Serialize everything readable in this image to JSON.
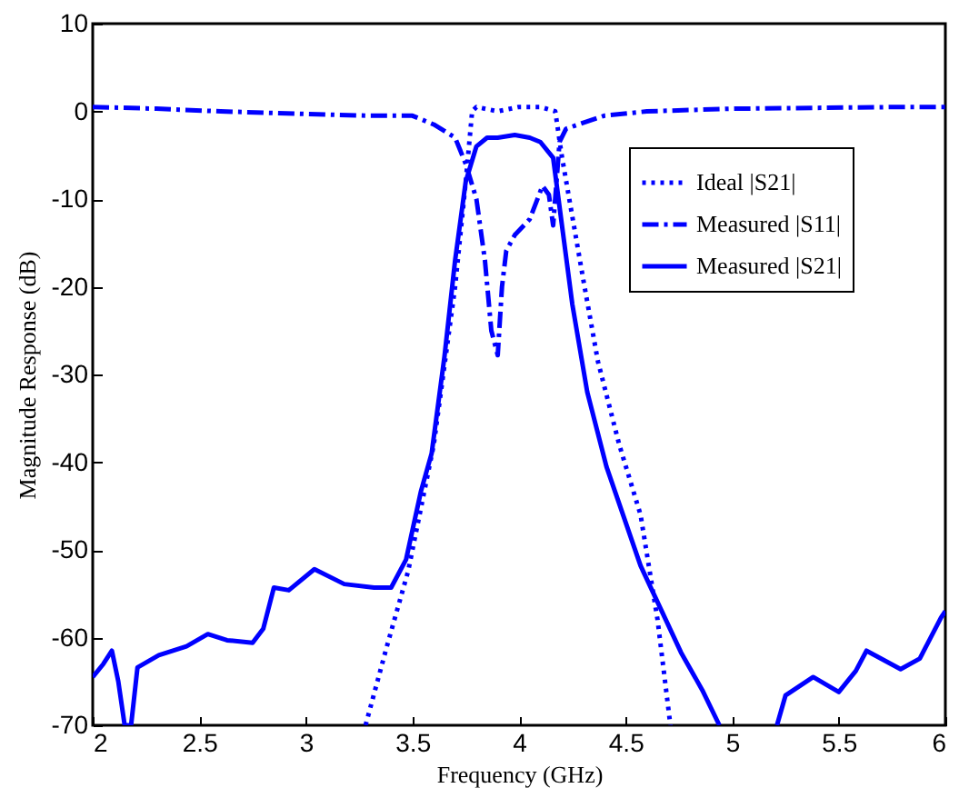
{
  "chart_data": {
    "type": "line",
    "xlabel": "Frequency (GHz)",
    "ylabel": "Magnitude Response (dB)",
    "xlim": [
      2,
      6
    ],
    "ylim": [
      -70,
      10
    ],
    "xticks": [
      2,
      2.5,
      3,
      3.5,
      4,
      4.5,
      5,
      5.5,
      6
    ],
    "yticks": [
      -70,
      -60,
      -50,
      -40,
      -30,
      -20,
      -10,
      0,
      10
    ],
    "grid": false,
    "legend": "top right",
    "series": [
      {
        "name": "Ideal |S21|",
        "color": "#0000ff",
        "line_style": "dotted",
        "x": [
          3.28,
          3.38,
          3.48,
          3.6,
          3.7,
          3.75,
          3.78,
          3.8,
          3.9,
          4.0,
          4.1,
          4.17,
          4.2,
          4.3,
          4.37,
          4.47,
          4.57,
          4.65,
          4.71
        ],
        "values": [
          -70,
          -61,
          -52.4,
          -38,
          -20,
          -8,
          0,
          0.5,
          0,
          0.5,
          0.5,
          0,
          -5,
          -19,
          -28.5,
          -38,
          -46,
          -58,
          -70
        ]
      },
      {
        "name": "Measured |S11|",
        "color": "#0000ff",
        "line_style": "dashdot",
        "x": [
          2,
          2.3,
          2.6,
          3.0,
          3.3,
          3.5,
          3.6,
          3.7,
          3.75,
          3.8,
          3.84,
          3.87,
          3.9,
          3.92,
          3.94,
          3.98,
          4.05,
          4.11,
          4.14,
          4.16,
          4.19,
          4.22,
          4.29,
          4.4,
          4.6,
          5.0,
          5.8,
          6.0
        ],
        "values": [
          0.5,
          0.3,
          0,
          -0.3,
          -0.5,
          -0.5,
          -1.5,
          -3,
          -6,
          -10,
          -17,
          -25,
          -27.8,
          -20,
          -15.9,
          -14.1,
          -12.3,
          -8.5,
          -9.5,
          -13,
          -3.5,
          -2,
          -1.4,
          -0.5,
          0,
          0.3,
          0.5,
          0.5
        ]
      },
      {
        "name": "Measured |S21|",
        "color": "#0000ff",
        "line_style": "solid",
        "x": [
          2.0,
          2.05,
          2.09,
          2.12,
          2.15,
          2.18,
          2.21,
          2.31,
          2.44,
          2.54,
          2.63,
          2.75,
          2.8,
          2.85,
          2.92,
          3.04,
          3.18,
          3.32,
          3.4,
          3.47,
          3.54,
          3.59,
          3.65,
          3.7,
          3.75,
          3.8,
          3.85,
          3.9,
          3.98,
          4.05,
          4.1,
          4.16,
          4.19,
          4.25,
          4.32,
          4.41,
          4.57,
          4.76,
          4.86,
          4.94,
          5.08,
          5.21,
          5.25,
          5.38,
          5.5,
          5.58,
          5.63,
          5.79,
          5.88,
          5.98,
          6.0
        ],
        "values": [
          -64.5,
          -63,
          -61.5,
          -65,
          -70,
          -70,
          -63.4,
          -62,
          -61,
          -59.6,
          -60.3,
          -60.6,
          -59,
          -54.3,
          -54.6,
          -52.2,
          -53.9,
          -54.3,
          -54.3,
          -51.1,
          -43.3,
          -39,
          -28,
          -17,
          -8,
          -4,
          -3,
          -3,
          -2.7,
          -3,
          -3.5,
          -5.3,
          -10.9,
          -22,
          -32,
          -40.5,
          -51.8,
          -61.7,
          -66,
          -70,
          null,
          -70,
          -66.6,
          -64.5,
          -66.2,
          -63.8,
          -61.5,
          -63.6,
          -62.4,
          -57.7,
          -57
        ]
      }
    ]
  }
}
